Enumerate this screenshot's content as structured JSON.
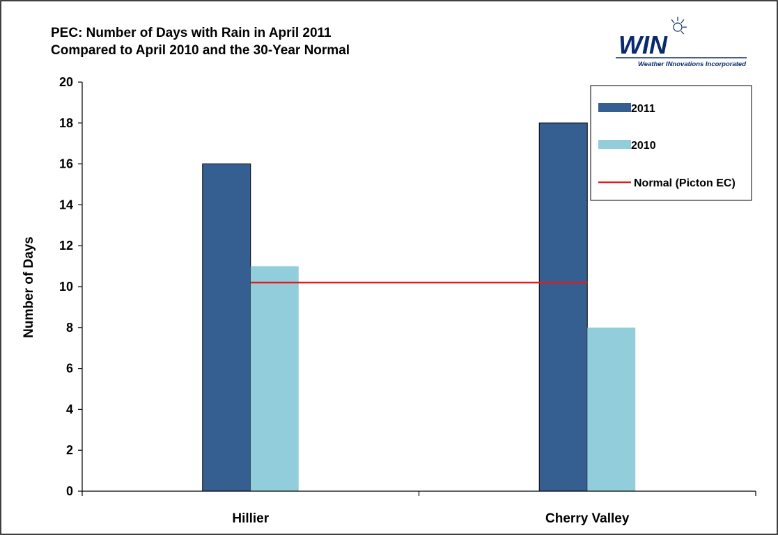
{
  "logo": {
    "name": "WIN",
    "tagline": "Weather INnovations Incorporated"
  },
  "colors": {
    "series_2011": "#365f91",
    "series_2010": "#92cddc",
    "normal_line": "#e31a1c",
    "logo_blue": "#0a2a6e",
    "frame": "#000000"
  },
  "chart_data": {
    "type": "bar",
    "title": "PEC: Number of Days with Rain in April 2011",
    "subtitle": "Compared to April 2010 and the 30-Year Normal",
    "xlabel": "",
    "ylabel": "Number of Days",
    "ylim": [
      0,
      20
    ],
    "yticks": [
      0,
      2,
      4,
      6,
      8,
      10,
      12,
      14,
      16,
      18,
      20
    ],
    "categories": [
      "Hillier",
      "Cherry Valley"
    ],
    "series": [
      {
        "name": "2011",
        "values": [
          16,
          18
        ]
      },
      {
        "name": "2010",
        "values": [
          11,
          8
        ]
      }
    ],
    "reference_line": {
      "name": "Normal (Picton EC)",
      "value": 10.2
    },
    "legend_position": "top-right",
    "grid": false
  }
}
